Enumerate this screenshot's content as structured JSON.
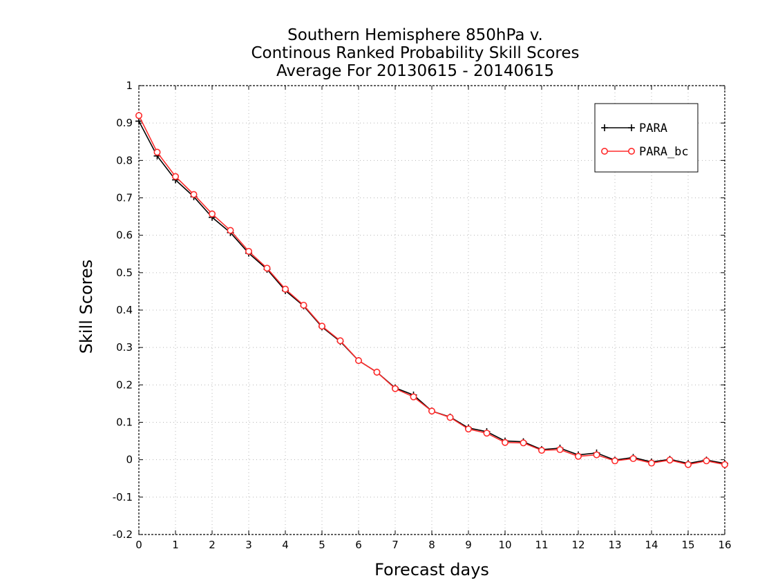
{
  "chart_data": {
    "type": "line",
    "title": [
      "Southern Hemisphere 850hPa v.",
      "Continous Ranked Probability Skill Scores",
      "Average For 20130615 - 20140615"
    ],
    "xlabel": "Forecast days",
    "ylabel": "Skill Scores",
    "xlim": [
      0,
      16
    ],
    "ylim": [
      -0.2,
      1
    ],
    "xticks": [
      0,
      1,
      2,
      3,
      4,
      5,
      6,
      7,
      8,
      9,
      10,
      11,
      12,
      13,
      14,
      15,
      16
    ],
    "yticks": [
      -0.2,
      -0.1,
      0,
      0.1,
      0.2,
      0.3,
      0.4,
      0.5,
      0.6,
      0.7,
      0.8,
      0.9,
      1
    ],
    "grid": true,
    "legend_position": "top-right",
    "x": [
      0,
      0.5,
      1,
      1.5,
      2,
      2.5,
      3,
      3.5,
      4,
      4.5,
      5,
      5.5,
      6,
      6.5,
      7,
      7.5,
      8,
      8.5,
      9,
      9.5,
      10,
      10.5,
      11,
      11.5,
      12,
      12.5,
      13,
      13.5,
      14,
      14.5,
      15,
      15.5,
      16
    ],
    "series": [
      {
        "name": "PARA",
        "color": "#000000",
        "marker": "plus",
        "values": [
          0.905,
          0.812,
          0.748,
          0.703,
          0.648,
          0.607,
          0.552,
          0.509,
          0.452,
          0.411,
          0.355,
          0.316,
          0.265,
          0.234,
          0.192,
          0.173,
          0.13,
          0.114,
          0.085,
          0.075,
          0.05,
          0.048,
          0.027,
          0.031,
          0.013,
          0.018,
          -0.001,
          0.006,
          -0.006,
          0.001,
          -0.01,
          -0.001,
          -0.01
        ]
      },
      {
        "name": "PARA_bc",
        "color": "#ff2b2b",
        "marker": "circle",
        "values": [
          0.92,
          0.822,
          0.757,
          0.709,
          0.657,
          0.613,
          0.557,
          0.512,
          0.456,
          0.413,
          0.357,
          0.318,
          0.265,
          0.234,
          0.19,
          0.168,
          0.13,
          0.113,
          0.082,
          0.071,
          0.046,
          0.045,
          0.025,
          0.027,
          0.009,
          0.013,
          -0.003,
          0.003,
          -0.009,
          -0.001,
          -0.013,
          -0.003,
          -0.013
        ]
      }
    ]
  }
}
